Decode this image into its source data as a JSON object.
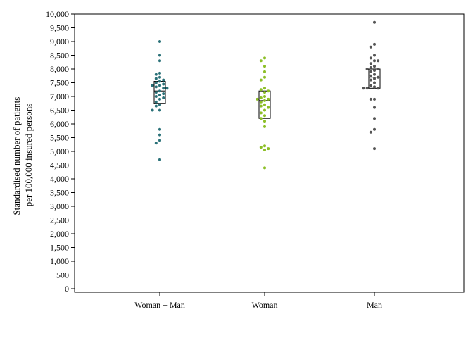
{
  "chart_data": {
    "type": "scatter",
    "subtype": "strip-plot-with-boxes",
    "ylabel_lines": [
      "Standardised number of patients",
      "per 100,000 insured persons"
    ],
    "ylim": [
      0,
      10000
    ],
    "yticks": [
      0,
      500,
      1000,
      1500,
      2000,
      2500,
      3000,
      3500,
      4000,
      4500,
      5000,
      5500,
      6000,
      6500,
      7000,
      7500,
      8000,
      8500,
      9000,
      9500,
      10000
    ],
    "ytick_labels": [
      "0",
      "500",
      "1,000",
      "1,500",
      "2,000",
      "2,500",
      "3,000",
      "3,500",
      "4,000",
      "4,500",
      "5,000",
      "5,500",
      "6,000",
      "6,500",
      "7,000",
      "7,500",
      "8,000",
      "8,500",
      "9,000",
      "9,500",
      "10,000"
    ],
    "categories": [
      "Woman + Man",
      "Woman",
      "Man"
    ],
    "grid": false,
    "series": [
      {
        "category": "Woman + Man",
        "color": "#2a7178",
        "box": {
          "q1": 6750,
          "median": 7200,
          "q3": 7550
        },
        "points": [
          9000,
          8500,
          8300,
          7850,
          7800,
          7700,
          7650,
          7600,
          7550,
          7500,
          7450,
          7400,
          7400,
          7350,
          7300,
          7300,
          7200,
          7150,
          7100,
          7050,
          7000,
          6950,
          6900,
          6800,
          6700,
          6650,
          6500,
          6500,
          5800,
          5600,
          5400,
          5300,
          4700
        ]
      },
      {
        "category": "Woman",
        "color": "#8cbf26",
        "box": {
          "q1": 6200,
          "median": 6850,
          "q3": 7200
        },
        "points": [
          8400,
          8300,
          8100,
          7900,
          7700,
          7600,
          7300,
          7250,
          7200,
          7150,
          7000,
          6950,
          6900,
          6900,
          6850,
          6800,
          6700,
          6650,
          6600,
          6500,
          6400,
          6300,
          6200,
          6100,
          5900,
          5200,
          5150,
          5100,
          5050,
          4400
        ]
      },
      {
        "category": "Man",
        "color": "#555555",
        "box": {
          "q1": 7300,
          "median": 7700,
          "q3": 8000
        },
        "points": [
          9700,
          8900,
          8800,
          8500,
          8400,
          8300,
          8300,
          8200,
          8100,
          8050,
          8000,
          8000,
          7950,
          7900,
          7800,
          7750,
          7700,
          7650,
          7600,
          7500,
          7400,
          7350,
          7300,
          7300,
          7300,
          6900,
          6900,
          6600,
          6200,
          5800,
          5700,
          5100
        ]
      }
    ]
  }
}
